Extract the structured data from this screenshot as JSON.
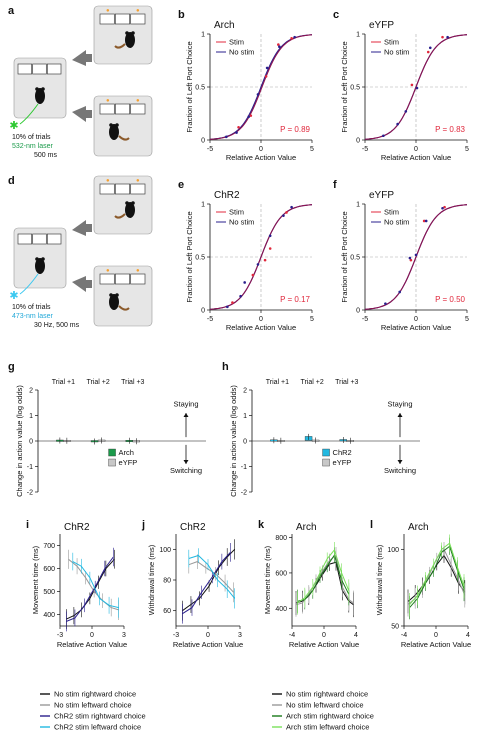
{
  "colors": {
    "arch": "#1a9a4a",
    "eyfp": "#c8c8c8",
    "chr2": "#22b8e0",
    "stim": "#e0283c",
    "nostim": "#2a1f8c",
    "pval": "#e0283c",
    "green_label": "#1a9a4a",
    "blue_label": "#22a8d8",
    "laser_green": "#2ec832",
    "laser_blue": "#3cc8f0",
    "ns_right": "#111111",
    "ns_left": "#999999",
    "chr2_right": "#2a1f8c",
    "chr2_left": "#22b8e0",
    "arch_right": "#1a7a1a",
    "arch_left": "#7ae05a",
    "fit": "#8c1450",
    "box": "#e6e6e6"
  },
  "panels": {
    "a": {
      "letter": "a",
      "l1": "10% of trials",
      "l2": "532-nm laser",
      "l3": "500 ms"
    },
    "d": {
      "letter": "d",
      "l1": "10% of trials",
      "l2": "473-nm laser",
      "l3": "30 Hz, 500 ms"
    }
  },
  "psych_common": {
    "ylabel": "Fraction of Left Port Choice",
    "xlabel": "Relative Action Value",
    "xticks": [
      "-5",
      "0",
      "5"
    ],
    "yticks": [
      "0",
      "0.5",
      "1"
    ],
    "legend": [
      "Stim",
      "No stim"
    ]
  },
  "chart_data": [
    {
      "id": "b",
      "type": "scatter",
      "title": "Arch",
      "letter": "b",
      "pvalue": "P = 0.89",
      "xlim": [
        -5,
        5
      ],
      "ylim": [
        0,
        1
      ],
      "fit_slope": 1.0,
      "fit_offset": 0.1,
      "series": [
        {
          "name": "Stim",
          "x": [
            -2.2,
            -1.0,
            0.5,
            1.7,
            3.0
          ],
          "y": [
            0.12,
            0.23,
            0.6,
            0.9,
            0.96
          ]
        },
        {
          "name": "No stim",
          "x": [
            -3.4,
            -2.4,
            -1.2,
            -0.3,
            0.6,
            1.8,
            3.3
          ],
          "y": [
            0.03,
            0.07,
            0.22,
            0.43,
            0.68,
            0.88,
            0.97
          ]
        }
      ]
    },
    {
      "id": "c",
      "type": "scatter",
      "title": "eYFP",
      "letter": "c",
      "pvalue": "P = 0.83",
      "xlim": [
        -5,
        5
      ],
      "ylim": [
        0,
        1
      ],
      "fit_slope": 1.0,
      "fit_offset": 0.0,
      "series": [
        {
          "name": "Stim",
          "x": [
            -0.4,
            1.2,
            2.6
          ],
          "y": [
            0.52,
            0.83,
            0.97
          ]
        },
        {
          "name": "No stim",
          "x": [
            -3.2,
            -1.8,
            -1.0,
            0.1,
            1.4,
            3.1
          ],
          "y": [
            0.04,
            0.15,
            0.27,
            0.49,
            0.87,
            0.97
          ]
        }
      ]
    },
    {
      "id": "e",
      "type": "scatter",
      "title": "ChR2",
      "letter": "e",
      "pvalue": "P = 0.17",
      "xlim": [
        -5,
        5
      ],
      "ylim": [
        0,
        1
      ],
      "fit_slope": 1.0,
      "fit_offset": 0.0,
      "series": [
        {
          "name": "Stim",
          "x": [
            -2.8,
            -0.8,
            0.4,
            0.9,
            2.5
          ],
          "y": [
            0.07,
            0.33,
            0.47,
            0.58,
            0.92
          ]
        },
        {
          "name": "No stim",
          "x": [
            -3.3,
            -2.0,
            -1.6,
            -0.3,
            0.9,
            2.2,
            3.0
          ],
          "y": [
            0.03,
            0.13,
            0.26,
            0.43,
            0.7,
            0.89,
            0.97
          ]
        }
      ]
    },
    {
      "id": "f",
      "type": "scatter",
      "title": "eYFP",
      "letter": "f",
      "pvalue": "P = 0.50",
      "xlim": [
        -5,
        5
      ],
      "ylim": [
        0,
        1
      ],
      "fit_slope": 1.0,
      "fit_offset": 0.0,
      "series": [
        {
          "name": "Stim",
          "x": [
            -0.5,
            0.8,
            2.8
          ],
          "y": [
            0.47,
            0.84,
            0.97
          ]
        },
        {
          "name": "No stim",
          "x": [
            -3.0,
            -1.6,
            -0.6,
            0.0,
            1.0,
            2.6
          ],
          "y": [
            0.06,
            0.17,
            0.49,
            0.52,
            0.84,
            0.96
          ]
        }
      ]
    },
    {
      "id": "g",
      "type": "bar",
      "letter": "g",
      "categories": [
        "Trial +1",
        "Trial +2",
        "Trial +3"
      ],
      "ylabel": "Change in action value (log odds)",
      "ylim": [
        -2,
        2
      ],
      "yticks": [
        "2",
        "1",
        "0",
        "-1",
        "-2"
      ],
      "annot_up": "Staying",
      "annot_down": "Switching",
      "series": [
        {
          "name": "Arch",
          "values": [
            0.02,
            -0.02,
            0.01
          ]
        },
        {
          "name": "eYFP",
          "values": [
            0.01,
            0.02,
            -0.01
          ]
        }
      ]
    },
    {
      "id": "h",
      "type": "bar",
      "letter": "h",
      "categories": [
        "Trial +1",
        "Trial +2",
        "Trial +3"
      ],
      "ylabel": "Change in action value (log odds)",
      "ylim": [
        -2,
        2
      ],
      "yticks": [
        "2",
        "1",
        "0",
        "-1",
        "-2"
      ],
      "annot_up": "Staying",
      "annot_down": "Switching",
      "series": [
        {
          "name": "ChR2",
          "values": [
            0.03,
            0.16,
            0.04
          ]
        },
        {
          "name": "eYFP",
          "values": [
            0.01,
            0.02,
            0.01
          ]
        }
      ]
    },
    {
      "id": "i",
      "type": "line",
      "title": "ChR2",
      "letter": "i",
      "ylabel": "Movement time (ms)",
      "xlabel": "Relative Action Value",
      "xlim": [
        -3,
        3
      ],
      "ylim": [
        350,
        750
      ],
      "xticks": [
        "-3",
        "0",
        "3"
      ],
      "yticks": [
        "400",
        "500",
        "600",
        "700"
      ],
      "series": [
        {
          "name": "No stim rightward choice",
          "x": [
            -2.4,
            -1.7,
            -1.0,
            -0.2,
            0.6,
            1.3,
            2.1
          ],
          "y": [
            380,
            395,
            420,
            470,
            540,
            600,
            640
          ]
        },
        {
          "name": "No stim leftward choice",
          "x": [
            -2.2,
            -1.4,
            -0.6,
            0.2,
            1.0,
            1.8,
            2.5
          ],
          "y": [
            640,
            610,
            560,
            500,
            460,
            430,
            420
          ]
        },
        {
          "name": "ChR2 stim rightward choice",
          "x": [
            -2.4,
            -1.6,
            -0.7,
            0.3,
            1.2,
            2.0
          ],
          "y": [
            370,
            385,
            440,
            520,
            600,
            650
          ]
        },
        {
          "name": "ChR2 stim leftward choice",
          "x": [
            -1.8,
            -1.0,
            -0.2,
            0.7,
            1.6,
            2.5
          ],
          "y": [
            630,
            610,
            560,
            470,
            440,
            430
          ]
        }
      ]
    },
    {
      "id": "j",
      "type": "line",
      "title": "ChR2",
      "letter": "j",
      "ylabel": "Withdrawal time (ms)",
      "xlabel": "Relative Action Value",
      "xlim": [
        -3,
        3
      ],
      "ylim": [
        50,
        110
      ],
      "xticks": [
        "-3",
        "0",
        "3"
      ],
      "yticks": [
        "60",
        "80",
        "100"
      ],
      "series": [
        {
          "name": "No stim rightward choice",
          "x": [
            -2.4,
            -1.6,
            -0.8,
            0.1,
            1.0,
            1.8,
            2.5
          ],
          "y": [
            60,
            64,
            68,
            76,
            88,
            95,
            100
          ]
        },
        {
          "name": "No stim leftward choice",
          "x": [
            -1.8,
            -1.0,
            -0.2,
            0.7,
            1.6,
            2.4
          ],
          "y": [
            90,
            92,
            88,
            84,
            78,
            72
          ]
        },
        {
          "name": "ChR2 stim rightward choice",
          "x": [
            -2.4,
            -1.5,
            -0.6,
            0.4,
            1.3,
            2.1
          ],
          "y": [
            58,
            62,
            72,
            82,
            92,
            98
          ]
        },
        {
          "name": "ChR2 stim leftward choice",
          "x": [
            -1.8,
            -0.9,
            0.0,
            0.9,
            1.8,
            2.5
          ],
          "y": [
            94,
            96,
            90,
            80,
            74,
            68
          ]
        }
      ]
    },
    {
      "id": "k",
      "type": "line",
      "title": "Arch",
      "letter": "k",
      "ylabel": "Movement time (ms)",
      "xlabel": "Relative Action Value",
      "xlim": [
        -4,
        4
      ],
      "ylim": [
        300,
        820
      ],
      "xticks": [
        "-4",
        "0",
        "4"
      ],
      "yticks": [
        "400",
        "600",
        "800"
      ],
      "series": [
        {
          "name": "No stim rightward choice",
          "x": [
            -3.5,
            -2.7,
            -1.9,
            -1.0,
            -0.2,
            0.7,
            1.5,
            2.3,
            3.1,
            3.7
          ],
          "y": [
            430,
            440,
            470,
            530,
            590,
            650,
            660,
            500,
            440,
            420
          ]
        },
        {
          "name": "No stim leftward choice",
          "x": [
            -3.5,
            -2.7,
            -1.9,
            -1.0,
            -0.2,
            0.7,
            1.5,
            2.3,
            3.1,
            3.7
          ],
          "y": [
            420,
            430,
            480,
            550,
            610,
            670,
            700,
            520,
            450,
            430
          ]
        },
        {
          "name": "Arch stim rightward choice",
          "x": [
            -3.3,
            -2.4,
            -1.4,
            -0.5,
            0.4,
            1.3,
            2.2,
            3.1
          ],
          "y": [
            440,
            450,
            500,
            580,
            640,
            700,
            560,
            480
          ]
        },
        {
          "name": "Arch stim leftward choice",
          "x": [
            -3.3,
            -2.4,
            -1.4,
            -0.5,
            0.4,
            1.3,
            2.2,
            3.1
          ],
          "y": [
            430,
            460,
            520,
            600,
            680,
            730,
            600,
            500
          ]
        }
      ]
    },
    {
      "id": "l",
      "type": "line",
      "title": "Arch",
      "letter": "l",
      "ylabel": "Withdrawal time (ms)",
      "xlabel": "Relative Action Value",
      "xlim": [
        -4,
        4
      ],
      "ylim": [
        50,
        110
      ],
      "xticks": [
        "-4",
        "0",
        "4"
      ],
      "yticks": [
        "50",
        "100"
      ],
      "series": [
        {
          "name": "No stim rightward choice",
          "x": [
            -3.5,
            -2.6,
            -1.7,
            -0.8,
            0.1,
            1.0,
            1.9,
            2.8,
            3.6
          ],
          "y": [
            66,
            70,
            76,
            82,
            90,
            96,
            88,
            78,
            72
          ]
        },
        {
          "name": "No stim leftward choice",
          "x": [
            -3.5,
            -2.6,
            -1.7,
            -0.8,
            0.1,
            1.0,
            1.9,
            2.8,
            3.6
          ],
          "y": [
            64,
            68,
            74,
            84,
            94,
            100,
            90,
            80,
            70
          ]
        },
        {
          "name": "Arch stim rightward choice",
          "x": [
            -3.3,
            -2.3,
            -1.3,
            -0.3,
            0.7,
            1.7,
            2.7,
            3.5
          ],
          "y": [
            62,
            68,
            78,
            86,
            98,
            102,
            86,
            74
          ]
        },
        {
          "name": "Arch stim leftward choice",
          "x": [
            -3.3,
            -2.3,
            -1.3,
            -0.3,
            0.7,
            1.7,
            2.7,
            3.5
          ],
          "y": [
            64,
            70,
            80,
            90,
            100,
            104,
            88,
            76
          ]
        }
      ]
    }
  ],
  "legend_left": [
    "No stim rightward choice",
    "No stim leftward choice",
    "ChR2 stim rightward choice",
    "ChR2 stim leftward choice"
  ],
  "legend_right": [
    "No stim rightward choice",
    "No stim leftward choice",
    "Arch stim rightward choice",
    "Arch stim leftward choice"
  ]
}
